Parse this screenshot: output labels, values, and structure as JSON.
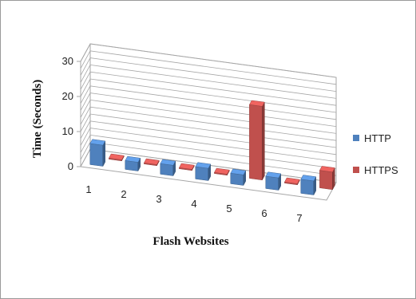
{
  "chart_data": {
    "type": "bar",
    "title": "",
    "xlabel": "Flash Websites",
    "ylabel": "Time (Seconds)",
    "ylim": [
      0,
      30
    ],
    "yticks": [
      0,
      10,
      20,
      30
    ],
    "categories": [
      "1",
      "2",
      "3",
      "4",
      "5",
      "6",
      "7"
    ],
    "series": [
      {
        "name": "HTTP",
        "color": "#4f81bd",
        "values": [
          6,
          2.5,
          3,
          3.5,
          3,
          3.5,
          4
        ]
      },
      {
        "name": "HTTPS",
        "color": "#c0504d",
        "values": [
          0.3,
          0.3,
          0.3,
          0.3,
          21,
          0.3,
          5
        ]
      }
    ],
    "grid": true,
    "legend_position": "right",
    "style": "3d-clustered-column"
  }
}
